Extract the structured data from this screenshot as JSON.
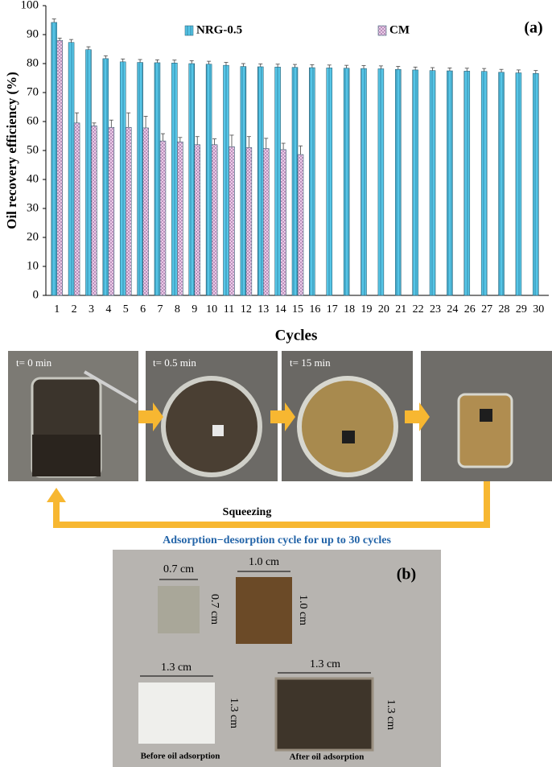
{
  "chart_data": {
    "type": "bar",
    "panel_label": "(a)",
    "y_label": "Oil recovery efficiency (%)",
    "x_label": "Cycles",
    "categories": [
      "1",
      "2",
      "3",
      "4",
      "5",
      "6",
      "7",
      "8",
      "9",
      "10",
      "11",
      "12",
      "13",
      "14",
      "15",
      "16",
      "17",
      "18",
      "19",
      "20",
      "21",
      "22",
      "23",
      "24",
      "26",
      "27",
      "28",
      "29",
      "30"
    ],
    "series": [
      {
        "name": "NRG-0.5",
        "color": "#56c5e6",
        "values": [
          94.2,
          87.3,
          84.8,
          81.7,
          80.6,
          80.4,
          80.3,
          80.2,
          80.0,
          79.8,
          79.4,
          79.0,
          78.9,
          78.8,
          78.7,
          78.6,
          78.5,
          78.4,
          78.3,
          78.2,
          78.0,
          77.8,
          77.6,
          77.5,
          77.4,
          77.3,
          77.0,
          76.8,
          76.6
        ],
        "errors": [
          1.2,
          1.0,
          1.0,
          1.0,
          1.0,
          1.0,
          1.0,
          1.0,
          1.0,
          1.0,
          1.0,
          1.0,
          1.0,
          1.0,
          1.0,
          1.0,
          1.0,
          1.0,
          1.0,
          1.0,
          1.0,
          1.0,
          1.0,
          1.0,
          1.0,
          1.0,
          1.0,
          1.0,
          1.0
        ]
      },
      {
        "name": "CM",
        "color": "#f2d2ee",
        "values": [
          88.0,
          59.5,
          58.5,
          58.0,
          58.0,
          57.8,
          53.3,
          53.0,
          52.0,
          52.0,
          51.3,
          51.0,
          50.7,
          50.3,
          48.6,
          null,
          null,
          null,
          null,
          null,
          null,
          null,
          null,
          null,
          null,
          null,
          null,
          null,
          null
        ],
        "errors": [
          0.8,
          3.5,
          1.0,
          2.5,
          5.0,
          4.0,
          2.5,
          1.5,
          2.8,
          2.0,
          4.0,
          3.8,
          3.5,
          2.2,
          3.0,
          null,
          null,
          null,
          null,
          null,
          null,
          null,
          null,
          null,
          null,
          null,
          null,
          null,
          null
        ]
      }
    ],
    "ylim": [
      0,
      100
    ],
    "yticks": [
      0,
      10,
      20,
      30,
      40,
      50,
      60,
      70,
      80,
      90,
      100
    ],
    "legend": "top"
  },
  "process": {
    "steps": [
      "t= 0 min",
      "t= 0.5 min",
      "t= 15 min"
    ],
    "arrow_label": "Squeezing",
    "caption": "Adsorption−desorption  cycle for up to 30 cycles"
  },
  "panel_b": {
    "label": "(b)",
    "samples": [
      {
        "width": "0.7 cm",
        "height": "0.7 cm"
      },
      {
        "width": "1.0 cm",
        "height": "1.0 cm"
      },
      {
        "width": "1.3 cm",
        "height": "1.3 cm"
      },
      {
        "width": "1.3 cm",
        "height": "1.3 cm"
      }
    ],
    "captions": [
      "Before oil adsorption",
      "After oil adsorption"
    ]
  }
}
